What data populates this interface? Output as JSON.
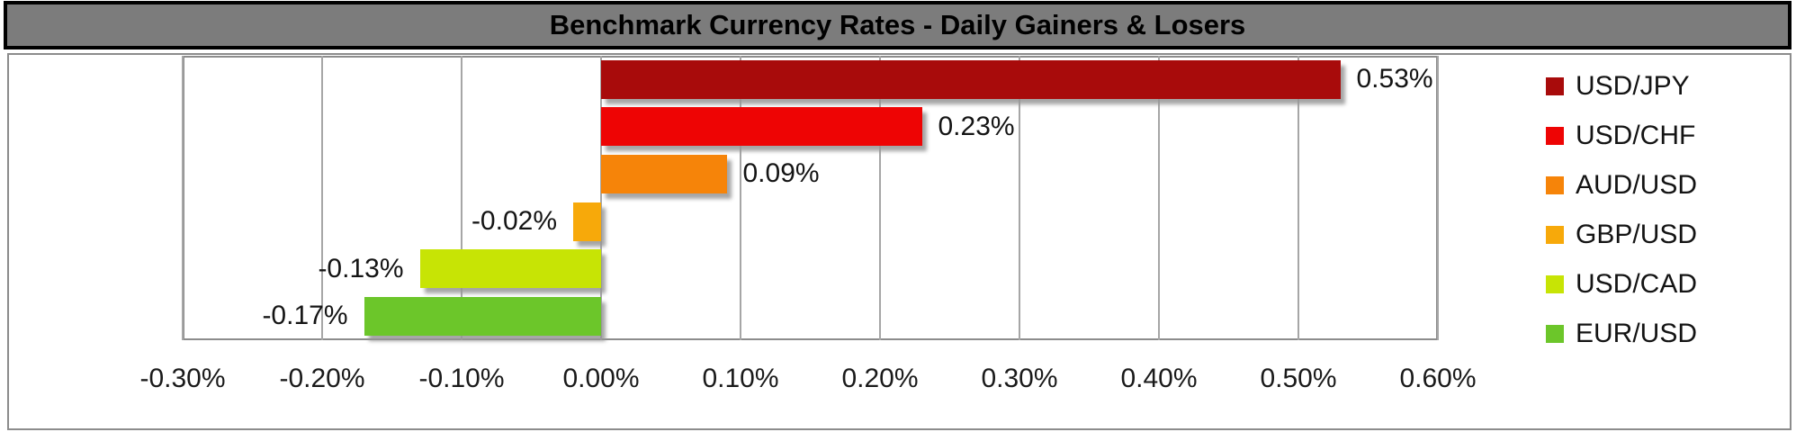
{
  "title_bar": {
    "text": "Benchmark Currency Rates - Daily Gainers & Losers"
  },
  "chart_data": {
    "type": "bar",
    "orientation": "horizontal",
    "title": "Benchmark Currency Rates - Daily Gainers & Losers",
    "categories": [
      "USD/JPY",
      "USD/CHF",
      "AUD/USD",
      "GBP/USD",
      "USD/CAD",
      "EUR/USD"
    ],
    "values": [
      0.53,
      0.23,
      0.09,
      -0.02,
      -0.13,
      -0.17
    ],
    "data_labels": [
      "0.53%",
      "0.23%",
      "0.09%",
      "-0.02%",
      "-0.13%",
      "-0.17%"
    ],
    "bar_colors": [
      "#A80B0B",
      "#EE0404",
      "#F68409",
      "#F7A90A",
      "#C7E405",
      "#6CC62A"
    ],
    "xlabel": "",
    "ylabel": "",
    "xlim": [
      -0.3,
      0.6
    ],
    "tick_step": 0.1,
    "x_ticks": [
      {
        "v": -0.3,
        "label": "-0.30%"
      },
      {
        "v": -0.2,
        "label": "-0.20%"
      },
      {
        "v": -0.1,
        "label": "-0.10%"
      },
      {
        "v": 0.0,
        "label": "0.00%"
      },
      {
        "v": 0.1,
        "label": "0.10%"
      },
      {
        "v": 0.2,
        "label": "0.20%"
      },
      {
        "v": 0.3,
        "label": "0.30%"
      },
      {
        "v": 0.4,
        "label": "0.40%"
      },
      {
        "v": 0.5,
        "label": "0.50%"
      },
      {
        "v": 0.6,
        "label": "0.60%"
      }
    ],
    "legend": [
      {
        "label": "USD/JPY",
        "color": "#A80B0B"
      },
      {
        "label": "USD/CHF",
        "color": "#EE0404"
      },
      {
        "label": "AUD/USD",
        "color": "#F68409"
      },
      {
        "label": "GBP/USD",
        "color": "#F7A90A"
      },
      {
        "label": "USD/CAD",
        "color": "#C7E405"
      },
      {
        "label": "EUR/USD",
        "color": "#6CC62A"
      }
    ],
    "legend_position": "right",
    "grid": "vertical"
  },
  "style_colors": {
    "title_bg": "#7C7C7C",
    "title_border": "#000000",
    "title_text": "#000000",
    "grid_line": "#A6A6A6",
    "plot_border": "#8C8C8C",
    "chart_box_border": "#8C8C8C",
    "axis_text": "#1A1A1A",
    "bar_shadow": "#969696"
  }
}
